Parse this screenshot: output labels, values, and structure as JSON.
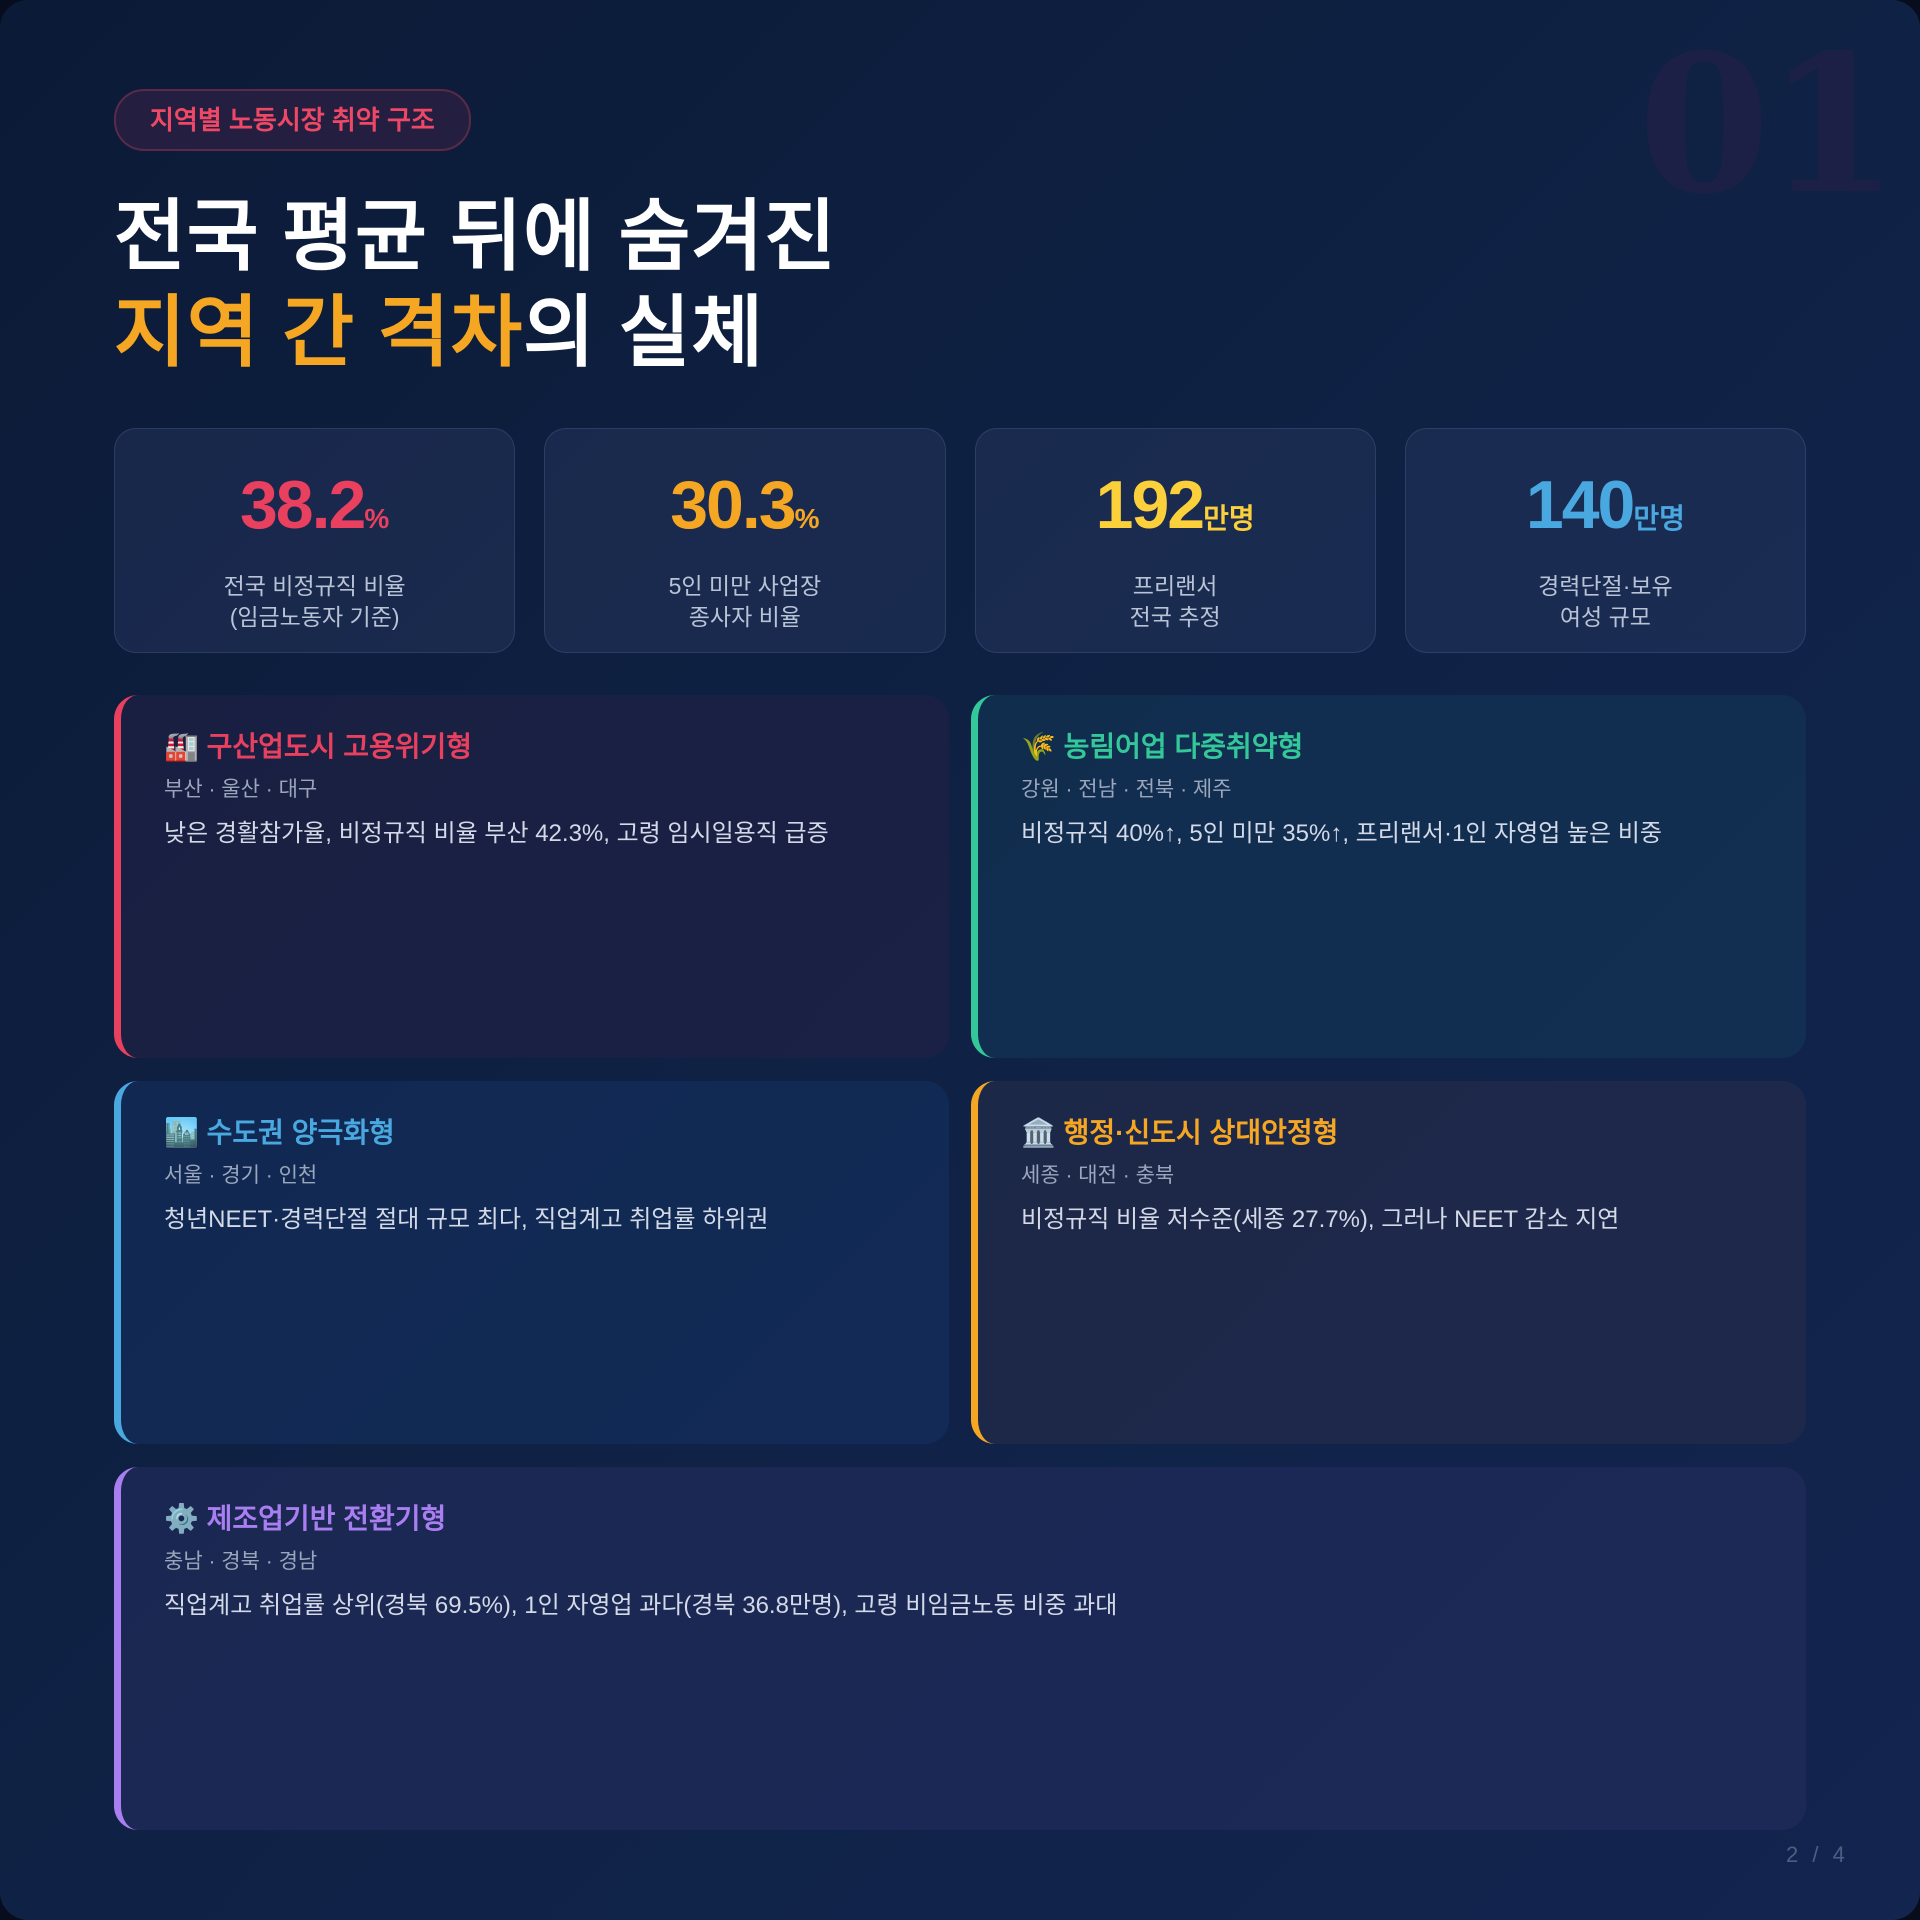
{
  "watermark": "01",
  "badge": "지역별 노동시장 취약 구조",
  "title": {
    "line1": "전국 평균 뒤에 숨겨진",
    "line2_highlight": "지역 간 격차",
    "line2_rest": "의 실체"
  },
  "stats": [
    {
      "value": "38.2",
      "unit": "%",
      "label1": "전국 비정규직 비율",
      "label2": "(임금노동자 기준)",
      "color": "#e8405e"
    },
    {
      "value": "30.3",
      "unit": "%",
      "label1": "5인 미만 사업장",
      "label2": "종사자 비율",
      "color": "#f5a623"
    },
    {
      "value": "192",
      "unit": "만명",
      "label1": "프리랜서",
      "label2": "전국 추정",
      "color": "#fcd03a"
    },
    {
      "value": "140",
      "unit": "만명",
      "label1": "경력단절·보유",
      "label2": "여성 규모",
      "color": "#4aa8e0"
    }
  ],
  "cards": [
    {
      "icon": "🏭",
      "title": "구산업도시 고용위기형",
      "regions": "부산 · 울산 · 대구",
      "desc": "낮은 경활참가율, 비정규직 비율 부산 42.3%, 고령 임시일용직 급증",
      "color": "#e8405e"
    },
    {
      "icon": "🌾",
      "title": "농림어업 다중취약형",
      "regions": "강원 · 전남 · 전북 · 제주",
      "desc": "비정규직 40%↑, 5인 미만 35%↑, 프리랜서·1인 자영업 높은 비중",
      "color": "#34c79a"
    },
    {
      "icon": "🏙️",
      "title": "수도권 양극화형",
      "regions": "서울 · 경기 · 인천",
      "desc": "청년NEET·경력단절 절대 규모 최다, 직업계고 취업률 하위권",
      "color": "#4aa8e0"
    },
    {
      "icon": "🏛️",
      "title": "행정·신도시 상대안정형",
      "regions": "세종 · 대전 · 충북",
      "desc": "비정규직 비율 저수준(세종 27.7%), 그러나 NEET 감소 지연",
      "color": "#f5a623"
    },
    {
      "icon": "⚙️",
      "title": "제조업기반 전환기형",
      "regions": "충남 · 경북 · 경남",
      "desc": "직업계고 취업률 상위(경북 69.5%), 1인 자영업 과다(경북 36.8만명), 고령 비임금노동 비중 과대",
      "color": "#a97ef0"
    }
  ],
  "pagination": "2 / 4"
}
